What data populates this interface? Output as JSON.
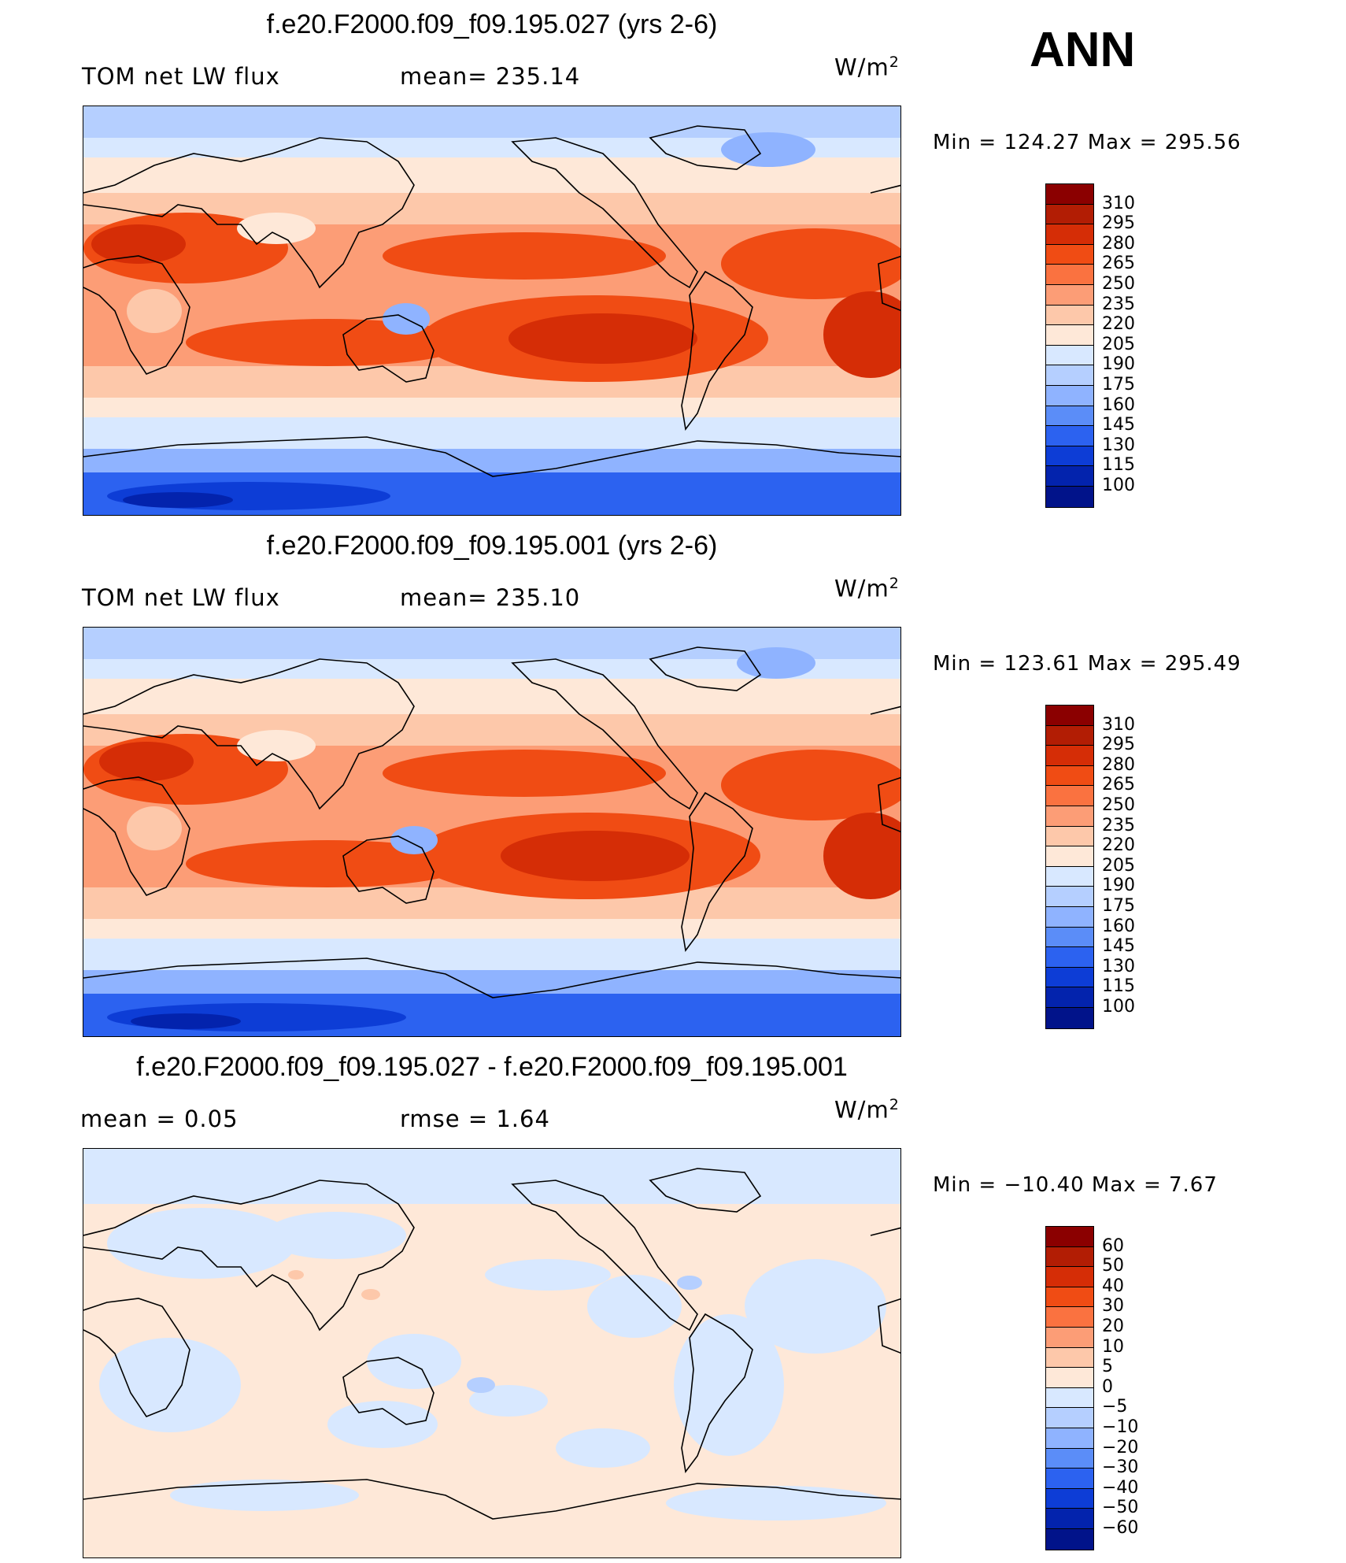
{
  "season": "ANN",
  "panels": [
    {
      "title": "f.e20.F2000.f09_f09.195.027 (yrs 2-6)",
      "left_label": "TOM net LW flux",
      "center_label": "mean= 235.14",
      "units": "W/m",
      "units_sup": "2",
      "min_max": "Min  =  124.27  Max  =  295.56",
      "colorbar": {
        "levels": [
          "310",
          "295",
          "280",
          "265",
          "250",
          "235",
          "220",
          "205",
          "190",
          "175",
          "160",
          "145",
          "130",
          "115",
          "100"
        ],
        "colors": [
          "#8b0000",
          "#b21d04",
          "#d52d06",
          "#f04c14",
          "#fa7240",
          "#fc9d76",
          "#fdc8aa",
          "#fee8d8",
          "#d8e8ff",
          "#b5cfff",
          "#8fb3ff",
          "#5b8df8",
          "#2c62f0",
          "#0d3dd6",
          "#0323ad",
          "#01138a"
        ]
      }
    },
    {
      "title": "f.e20.F2000.f09_f09.195.001 (yrs 2-6)",
      "left_label": "TOM net LW flux",
      "center_label": "mean= 235.10",
      "units": "W/m",
      "units_sup": "2",
      "min_max": "Min  =  123.61  Max  =  295.49",
      "colorbar": {
        "levels": [
          "310",
          "295",
          "280",
          "265",
          "250",
          "235",
          "220",
          "205",
          "190",
          "175",
          "160",
          "145",
          "130",
          "115",
          "100"
        ],
        "colors": [
          "#8b0000",
          "#b21d04",
          "#d52d06",
          "#f04c14",
          "#fa7240",
          "#fc9d76",
          "#fdc8aa",
          "#fee8d8",
          "#d8e8ff",
          "#b5cfff",
          "#8fb3ff",
          "#5b8df8",
          "#2c62f0",
          "#0d3dd6",
          "#0323ad",
          "#01138a"
        ]
      }
    },
    {
      "title": "f.e20.F2000.f09_f09.195.027 - f.e20.F2000.f09_f09.195.001",
      "left_label": "mean =     0.05",
      "center_label": "rmse =     1.64",
      "units": "W/m",
      "units_sup": "2",
      "min_max": "Min  =  −10.40  Max  =      7.67",
      "colorbar": {
        "levels": [
          "60",
          "50",
          "40",
          "30",
          "20",
          "10",
          "5",
          "0",
          "−5",
          "−10",
          "−20",
          "−30",
          "−40",
          "−50",
          "−60"
        ],
        "colors": [
          "#8b0000",
          "#b21d04",
          "#d52d06",
          "#f04c14",
          "#fa7240",
          "#fc9d76",
          "#fdc8aa",
          "#fee8d8",
          "#d8e8ff",
          "#b5cfff",
          "#8fb3ff",
          "#5b8df8",
          "#2c62f0",
          "#0d3dd6",
          "#0323ad",
          "#01138a"
        ]
      }
    }
  ]
}
